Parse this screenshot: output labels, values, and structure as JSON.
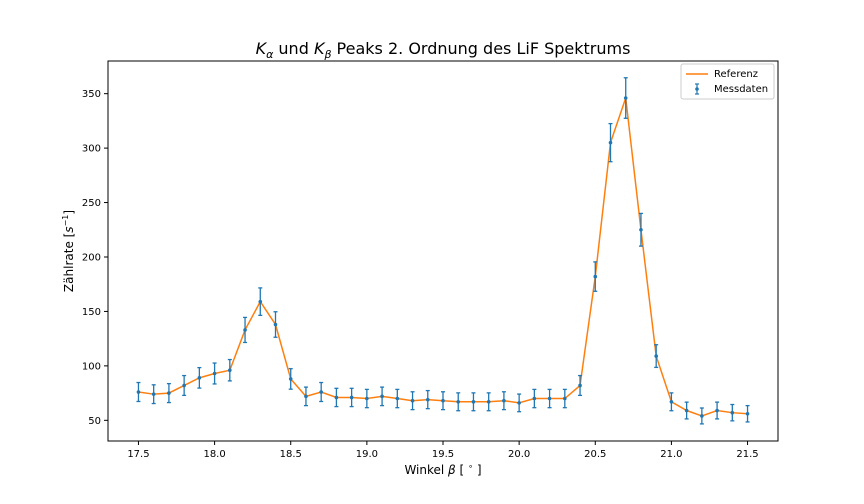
{
  "chart_data": {
    "type": "line",
    "title": "K_α und K_β Peaks 2. Ordnung des LiF Spektrums",
    "title_parts": {
      "k": "K",
      "alpha_sub": "α",
      "und": " und ",
      "beta_sub": "β",
      "rest": " Peaks 2. Ordnung des LiF Spektrums"
    },
    "xlabel": "Winkel β [°]",
    "xlabel_parts": {
      "pre": "Winkel ",
      "beta": "β",
      "unit": " [ ",
      "deg": "∘",
      "close": " ]"
    },
    "ylabel": "Zählrate [s⁻¹]",
    "ylabel_parts": {
      "pre": "Zählrate [",
      "s": "s",
      "sup": "−1",
      "close": "]"
    },
    "xlim": [
      17.3,
      21.7
    ],
    "ylim": [
      31,
      380
    ],
    "xticks": [
      17.5,
      18.0,
      18.5,
      19.0,
      19.5,
      20.0,
      20.5,
      21.0,
      21.5
    ],
    "xtick_labels": [
      "17.5",
      "18.0",
      "18.5",
      "19.0",
      "19.5",
      "20.0",
      "20.5",
      "21.0",
      "21.5"
    ],
    "yticks": [
      50,
      100,
      150,
      200,
      250,
      300,
      350
    ],
    "ytick_labels": [
      "50",
      "100",
      "150",
      "200",
      "250",
      "300",
      "350"
    ],
    "grid": false,
    "legend_position": "top-right",
    "x": [
      17.5,
      17.6,
      17.7,
      17.8,
      17.9,
      18.0,
      18.1,
      18.2,
      18.3,
      18.4,
      18.5,
      18.6,
      18.7,
      18.8,
      18.9,
      19.0,
      19.1,
      19.2,
      19.3,
      19.4,
      19.5,
      19.6,
      19.7,
      19.8,
      19.9,
      20.0,
      20.1,
      20.2,
      20.3,
      20.4,
      20.5,
      20.6,
      20.7,
      20.8,
      20.9,
      21.0,
      21.1,
      21.2,
      21.3,
      21.4,
      21.5
    ],
    "series": [
      {
        "name": "Referenz",
        "kind": "line",
        "color": "#ff7f0e",
        "values": [
          76,
          74,
          75,
          82,
          89,
          93,
          96,
          133,
          159,
          138,
          88,
          72,
          76,
          71,
          71,
          70,
          72,
          70,
          68,
          69,
          68,
          67,
          67,
          67,
          68,
          66,
          70,
          70,
          70,
          82,
          182,
          305,
          346,
          225,
          109,
          67,
          59,
          54,
          59,
          57,
          56
        ]
      },
      {
        "name": "Messdaten",
        "kind": "errorbar",
        "color": "#1f77b4",
        "values": [
          76,
          74,
          75,
          82,
          89,
          93,
          96,
          133,
          159,
          138,
          88,
          72,
          76,
          71,
          71,
          70,
          72,
          70,
          68,
          69,
          68,
          67,
          67,
          67,
          68,
          66,
          70,
          70,
          70,
          82,
          182,
          305,
          346,
          225,
          109,
          67,
          59,
          54,
          59,
          57,
          56
        ],
        "errors": [
          8.7,
          8.6,
          8.7,
          9.1,
          9.4,
          9.6,
          9.8,
          11.5,
          12.6,
          11.7,
          9.4,
          8.5,
          8.7,
          8.4,
          8.4,
          8.4,
          8.5,
          8.4,
          8.2,
          8.3,
          8.2,
          8.2,
          8.2,
          8.2,
          8.2,
          8.1,
          8.4,
          8.4,
          8.4,
          9.1,
          13.5,
          17.5,
          18.6,
          15.0,
          10.4,
          8.2,
          7.7,
          7.3,
          7.7,
          7.5,
          7.5
        ]
      }
    ]
  }
}
